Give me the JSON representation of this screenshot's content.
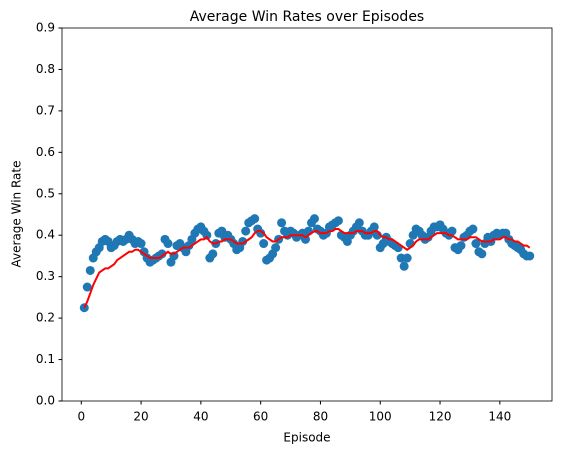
{
  "chart_data": {
    "type": "scatter",
    "title": "Average Win Rates over Episodes",
    "x_label": "Episode",
    "y_label": "Average Win Rate",
    "x": [
      1,
      2,
      3,
      4,
      5,
      6,
      7,
      8,
      9,
      10,
      11,
      12,
      13,
      14,
      15,
      16,
      17,
      18,
      19,
      20,
      21,
      22,
      23,
      24,
      25,
      26,
      27,
      28,
      29,
      30,
      31,
      32,
      33,
      34,
      35,
      36,
      37,
      38,
      39,
      40,
      41,
      42,
      43,
      44,
      45,
      46,
      47,
      48,
      49,
      50,
      51,
      52,
      53,
      54,
      55,
      56,
      57,
      58,
      59,
      60,
      61,
      62,
      63,
      64,
      65,
      66,
      67,
      68,
      69,
      70,
      71,
      72,
      73,
      74,
      75,
      76,
      77,
      78,
      79,
      80,
      81,
      82,
      83,
      84,
      85,
      86,
      87,
      88,
      89,
      90,
      91,
      92,
      93,
      94,
      95,
      96,
      97,
      98,
      99,
      100,
      101,
      102,
      103,
      104,
      105,
      106,
      107,
      108,
      109,
      110,
      111,
      112,
      113,
      114,
      115,
      116,
      117,
      118,
      119,
      120,
      121,
      122,
      123,
      124,
      125,
      126,
      127,
      128,
      129,
      130,
      131,
      132,
      133,
      134,
      135,
      136,
      137,
      138,
      139,
      140,
      141,
      142,
      143,
      144,
      145,
      146,
      147,
      148,
      149,
      150
    ],
    "series": [
      {
        "kind": "markers",
        "color": "#1f77b4",
        "values": [
          0.225,
          0.275,
          0.315,
          0.345,
          0.36,
          0.37,
          0.385,
          0.39,
          0.385,
          0.37,
          0.375,
          0.385,
          0.39,
          0.385,
          0.39,
          0.4,
          0.39,
          0.38,
          0.385,
          0.38,
          0.36,
          0.345,
          0.335,
          0.34,
          0.345,
          0.35,
          0.355,
          0.39,
          0.38,
          0.335,
          0.35,
          0.375,
          0.38,
          0.37,
          0.36,
          0.375,
          0.39,
          0.405,
          0.415,
          0.42,
          0.41,
          0.4,
          0.345,
          0.355,
          0.38,
          0.405,
          0.41,
          0.395,
          0.4,
          0.39,
          0.38,
          0.365,
          0.37,
          0.385,
          0.41,
          0.43,
          0.435,
          0.44,
          0.415,
          0.405,
          0.38,
          0.34,
          0.345,
          0.355,
          0.37,
          0.39,
          0.43,
          0.41,
          0.4,
          0.41,
          0.405,
          0.395,
          0.4,
          0.405,
          0.39,
          0.41,
          0.43,
          0.44,
          0.415,
          0.41,
          0.4,
          0.405,
          0.42,
          0.425,
          0.43,
          0.435,
          0.4,
          0.395,
          0.385,
          0.4,
          0.41,
          0.42,
          0.43,
          0.41,
          0.4,
          0.4,
          0.41,
          0.42,
          0.4,
          0.37,
          0.38,
          0.395,
          0.385,
          0.38,
          0.375,
          0.37,
          0.345,
          0.325,
          0.345,
          0.38,
          0.4,
          0.415,
          0.41,
          0.4,
          0.39,
          0.395,
          0.41,
          0.42,
          0.42,
          0.425,
          0.415,
          0.405,
          0.4,
          0.41,
          0.37,
          0.365,
          0.375,
          0.395,
          0.4,
          0.41,
          0.415,
          0.38,
          0.36,
          0.355,
          0.38,
          0.395,
          0.385,
          0.4,
          0.405,
          0.4,
          0.405,
          0.405,
          0.39,
          0.38,
          0.375,
          0.37,
          0.365,
          0.355,
          0.35,
          0.35
        ]
      },
      {
        "kind": "line",
        "color": "red",
        "values": [
          0.225,
          0.24,
          0.26,
          0.28,
          0.295,
          0.31,
          0.315,
          0.32,
          0.32,
          0.325,
          0.33,
          0.34,
          0.345,
          0.35,
          0.355,
          0.36,
          0.36,
          0.365,
          0.365,
          0.36,
          0.355,
          0.35,
          0.345,
          0.345,
          0.345,
          0.345,
          0.35,
          0.355,
          0.36,
          0.355,
          0.355,
          0.36,
          0.365,
          0.37,
          0.37,
          0.37,
          0.375,
          0.38,
          0.385,
          0.39,
          0.39,
          0.395,
          0.385,
          0.38,
          0.38,
          0.385,
          0.385,
          0.39,
          0.39,
          0.39,
          0.385,
          0.38,
          0.38,
          0.38,
          0.385,
          0.39,
          0.395,
          0.405,
          0.41,
          0.41,
          0.405,
          0.395,
          0.39,
          0.385,
          0.385,
          0.39,
          0.395,
          0.395,
          0.395,
          0.4,
          0.4,
          0.4,
          0.4,
          0.4,
          0.395,
          0.4,
          0.405,
          0.41,
          0.41,
          0.405,
          0.405,
          0.405,
          0.41,
          0.41,
          0.415,
          0.415,
          0.41,
          0.405,
          0.405,
          0.405,
          0.405,
          0.41,
          0.41,
          0.41,
          0.405,
          0.405,
          0.405,
          0.41,
          0.41,
          0.4,
          0.395,
          0.395,
          0.39,
          0.39,
          0.385,
          0.38,
          0.375,
          0.37,
          0.365,
          0.37,
          0.375,
          0.385,
          0.39,
          0.39,
          0.39,
          0.39,
          0.395,
          0.4,
          0.405,
          0.405,
          0.405,
          0.405,
          0.4,
          0.4,
          0.395,
          0.39,
          0.39,
          0.39,
          0.39,
          0.395,
          0.395,
          0.395,
          0.39,
          0.385,
          0.385,
          0.385,
          0.385,
          0.39,
          0.39,
          0.39,
          0.395,
          0.395,
          0.39,
          0.39,
          0.385,
          0.385,
          0.38,
          0.375,
          0.375,
          0.37
        ]
      }
    ],
    "xlim": [
      -6.45,
      157.45
    ],
    "xticks": [
      0,
      20,
      40,
      60,
      80,
      100,
      120,
      140
    ],
    "ylim": [
      0,
      0.9
    ],
    "yticks": [
      {
        "value": 0,
        "label": "0.0"
      },
      0.1,
      0.2,
      0.3,
      0.4,
      0.5,
      0.6,
      0.7,
      0.8,
      0.9
    ]
  }
}
